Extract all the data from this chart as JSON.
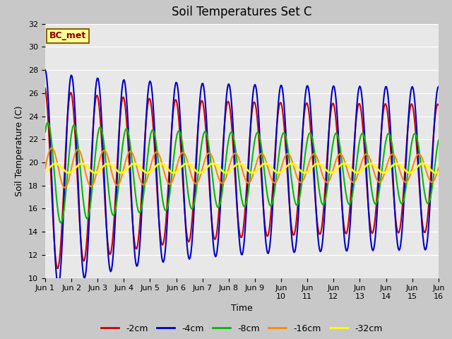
{
  "title": "Soil Temperatures Set C",
  "xlabel": "Time",
  "ylabel": "Soil Temperature (C)",
  "ylim": [
    10,
    32
  ],
  "xlim": [
    0,
    15
  ],
  "yticks": [
    10,
    12,
    14,
    16,
    18,
    20,
    22,
    24,
    26,
    28,
    30,
    32
  ],
  "annotation_text": "BC_met",
  "annotation_box_facecolor": "#FFFF99",
  "annotation_box_edgecolor": "#886600",
  "fig_facecolor": "#C8C8C8",
  "plot_facecolor": "#E8E8E8",
  "series": [
    {
      "label": "-2cm",
      "color": "#CC0000",
      "lw": 1.5
    },
    {
      "label": "-4cm",
      "color": "#0000CC",
      "lw": 1.5
    },
    {
      "label": "-8cm",
      "color": "#00BB00",
      "lw": 1.5
    },
    {
      "label": "-16cm",
      "color": "#FF8800",
      "lw": 1.5
    },
    {
      "label": "-32cm",
      "color": "#FFFF00",
      "lw": 2.0
    }
  ],
  "n_points": 500,
  "mean_temp": 19.5,
  "title_fontsize": 12,
  "label_fontsize": 9,
  "tick_fontsize": 8
}
